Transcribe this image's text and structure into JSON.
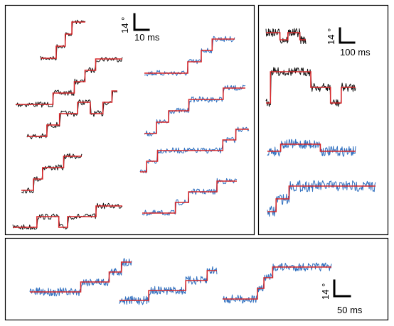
{
  "colors": {
    "black_trace": "#111111",
    "blue_trace": "#2f6fbf",
    "fit": "#d6282b",
    "frame": "#000000"
  },
  "chart_data": [
    {
      "type": "line",
      "panel": "left",
      "scale_bar": {
        "y_label": "14 °",
        "x_label": "10 ms",
        "y_value_deg": 14,
        "x_value_ms": 10
      },
      "fit_shape": "stepwise",
      "series": [
        {
          "color": "black",
          "fit_levels_deg": [
            0,
            14,
            28,
            42
          ]
        },
        {
          "color": "black",
          "fit_levels_deg": [
            0,
            14,
            28,
            42,
            56
          ]
        },
        {
          "color": "black",
          "fit_levels_deg": [
            0,
            14,
            28,
            42,
            28,
            42,
            56
          ]
        },
        {
          "color": "black",
          "fit_levels_deg": [
            0,
            14,
            28,
            42
          ]
        },
        {
          "color": "black",
          "fit_levels_deg": [
            0,
            14,
            0,
            14,
            28
          ]
        },
        {
          "color": "blue",
          "fit_levels_deg": [
            0,
            14,
            28,
            42
          ]
        },
        {
          "color": "blue",
          "fit_levels_deg": [
            0,
            14,
            28,
            42,
            56
          ]
        },
        {
          "color": "blue",
          "fit_levels_deg": [
            0,
            14,
            28,
            42,
            56
          ]
        },
        {
          "color": "blue",
          "fit_levels_deg": [
            0,
            14,
            28,
            42
          ]
        }
      ]
    },
    {
      "type": "line",
      "panel": "right",
      "scale_bar": {
        "y_label": "14 °",
        "x_label": "100 ms",
        "y_value_deg": 14,
        "x_value_ms": 100
      },
      "fit_shape": "stepwise",
      "series": [
        {
          "color": "black",
          "fit_levels_deg": [
            14,
            0,
            14,
            0
          ]
        },
        {
          "color": "black",
          "fit_levels_deg": [
            0,
            28,
            14,
            0,
            14
          ]
        },
        {
          "color": "blue",
          "fit_levels_deg": [
            0,
            14,
            0
          ]
        },
        {
          "color": "blue",
          "fit_levels_deg": [
            0,
            14,
            28
          ]
        }
      ]
    },
    {
      "type": "line",
      "panel": "bottom",
      "scale_bar": {
        "y_label": "14 °",
        "x_label": "50 ms",
        "y_value_deg": 14,
        "x_value_ms": 50
      },
      "fit_shape": "stepwise",
      "series": [
        {
          "color": "blue",
          "fit_levels_deg": [
            0,
            14,
            28,
            42
          ]
        },
        {
          "color": "blue",
          "fit_levels_deg": [
            0,
            14,
            28,
            42
          ]
        },
        {
          "color": "blue",
          "fit_levels_deg": [
            0,
            14,
            28,
            42
          ]
        }
      ]
    }
  ]
}
